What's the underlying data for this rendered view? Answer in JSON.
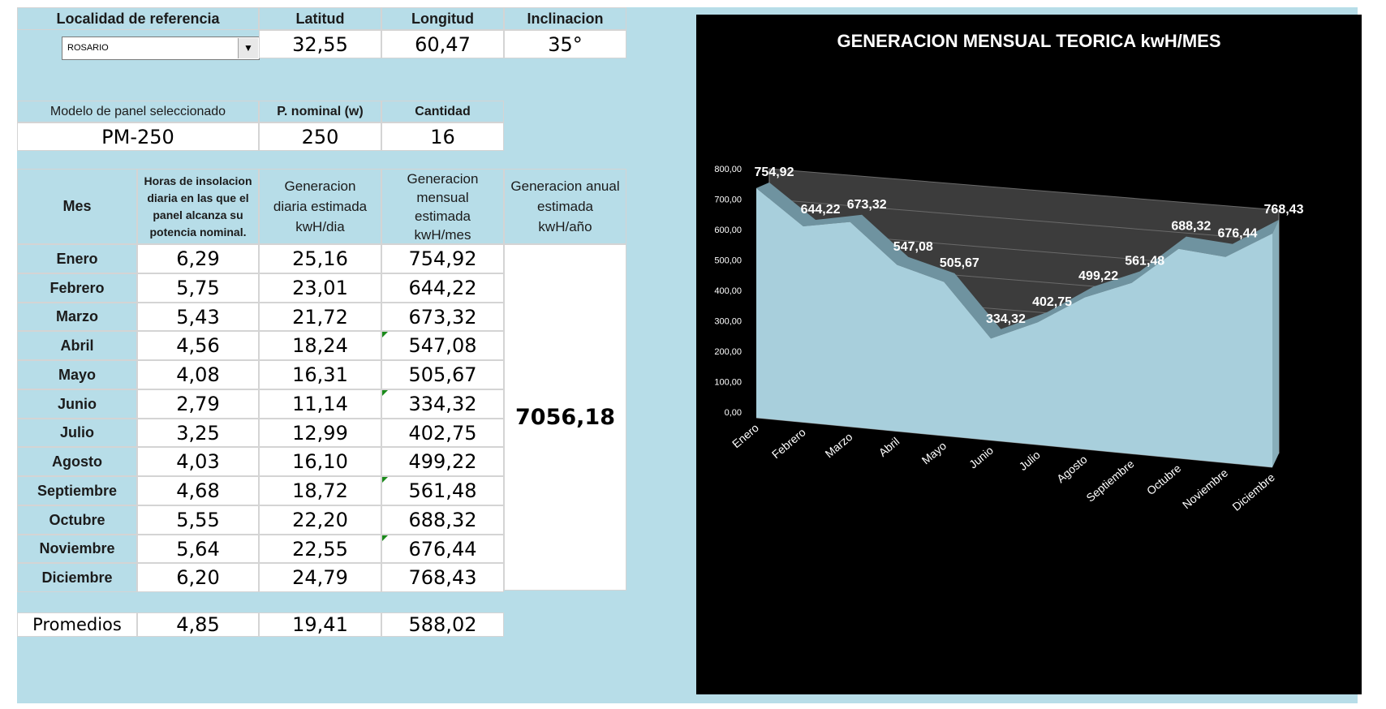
{
  "header": {
    "localidad_label": "Localidad de referencia",
    "latitud_label": "Latitud",
    "longitud_label": "Longitud",
    "inclinacion_label": "Inclinacion",
    "localidad_value": "ROSARIO",
    "latitud_value": "32,55",
    "longitud_value": "60,47",
    "inclinacion_value": "35°"
  },
  "panel": {
    "modelo_label": "Modelo de panel seleccionado",
    "pnominal_label": "P. nominal (w)",
    "cantidad_label": "Cantidad",
    "modelo_value": "PM-250",
    "pnominal_value": "250",
    "cantidad_value": "16"
  },
  "table": {
    "headers": {
      "mes": "Mes",
      "horas": "Horas de insolacion diaria en las que el panel alcanza su potencia nominal.",
      "diaria": "Generacion diaria estimada kwH/dia",
      "mensual": "Generacion mensual estimada kwH/mes",
      "anual": "Generacion anual estimada kwH/año"
    },
    "rows": [
      {
        "mes": "Enero",
        "horas": "6,29",
        "diaria": "25,16",
        "mensual": "754,92"
      },
      {
        "mes": "Febrero",
        "horas": "5,75",
        "diaria": "23,01",
        "mensual": "644,22"
      },
      {
        "mes": "Marzo",
        "horas": "5,43",
        "diaria": "21,72",
        "mensual": "673,32"
      },
      {
        "mes": "Abril",
        "horas": "4,56",
        "diaria": "18,24",
        "mensual": "547,08"
      },
      {
        "mes": "Mayo",
        "horas": "4,08",
        "diaria": "16,31",
        "mensual": "505,67"
      },
      {
        "mes": "Junio",
        "horas": "2,79",
        "diaria": "11,14",
        "mensual": "334,32"
      },
      {
        "mes": "Julio",
        "horas": "3,25",
        "diaria": "12,99",
        "mensual": "402,75"
      },
      {
        "mes": "Agosto",
        "horas": "4,03",
        "diaria": "16,10",
        "mensual": "499,22"
      },
      {
        "mes": "Septiembre",
        "horas": "4,68",
        "diaria": "18,72",
        "mensual": "561,48"
      },
      {
        "mes": "Octubre",
        "horas": "5,55",
        "diaria": "22,20",
        "mensual": "688,32"
      },
      {
        "mes": "Noviembre",
        "horas": "5,64",
        "diaria": "22,55",
        "mensual": "676,44"
      },
      {
        "mes": "Diciembre",
        "horas": "6,20",
        "diaria": "24,79",
        "mensual": "768,43"
      }
    ],
    "anual_value": "7056,18"
  },
  "promedios": {
    "label": "Promedios",
    "horas": "4,85",
    "diaria": "19,41",
    "mensual": "588,02"
  },
  "chart_data": {
    "type": "area",
    "title": "GENERACION MENSUAL TEORICA  kwH/MES",
    "categories": [
      "Enero",
      "Febrero",
      "Marzo",
      "Abril",
      "Mayo",
      "Junio",
      "Julio",
      "Agosto",
      "Septiembre",
      "Octubre",
      "Noviembre",
      "Diciembre"
    ],
    "values": [
      754.92,
      644.22,
      673.32,
      547.08,
      505.67,
      334.32,
      402.75,
      499.22,
      561.48,
      688.32,
      676.44,
      768.43
    ],
    "value_labels": [
      "754,92",
      "644,22",
      "673,32",
      "547,08",
      "505,67",
      "334,32",
      "402,75",
      "499,22",
      "561,48",
      "688,32",
      "676,44",
      "768,43"
    ],
    "y_ticks": [
      "0,00",
      "100,00",
      "200,00",
      "300,00",
      "400,00",
      "500,00",
      "600,00",
      "700,00",
      "800,00"
    ],
    "ylim": [
      0,
      800
    ],
    "grid": true,
    "colors": {
      "area": "#a8cfdc",
      "area_edge": "#6f93a0",
      "back_wall": "#3c3c3c",
      "background": "#000000",
      "text": "#ffffff"
    }
  }
}
